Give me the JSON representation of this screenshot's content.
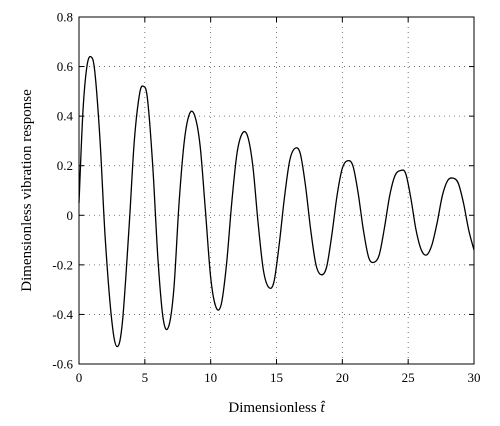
{
  "chart_data": {
    "type": "line",
    "title": "",
    "xlabel_prefix": "Dimensionless ",
    "xlabel_symbol": "t̂",
    "ylabel": "Dimensionless vibration response",
    "xlim": [
      0,
      30
    ],
    "ylim": [
      -0.6,
      0.8
    ],
    "x_ticks": [
      0,
      5,
      10,
      15,
      20,
      25,
      30
    ],
    "y_ticks": [
      -0.6,
      -0.4,
      -0.2,
      0,
      0.2,
      0.4,
      0.6,
      0.8
    ],
    "x_tick_labels": [
      "0",
      "5",
      "10",
      "15",
      "20",
      "25",
      "30"
    ],
    "y_tick_labels": [
      "-0.6",
      "-0.4",
      "-0.2",
      "0",
      "0.2",
      "0.4",
      "0.6",
      "0.8"
    ],
    "grid": true,
    "series": [
      {
        "x": [
          0,
          0.3,
          0.6,
          0.9,
          1.2,
          1.6,
          2.0,
          2.5,
          2.9,
          3.3,
          3.8,
          4.2,
          4.6,
          4.9,
          5.2,
          5.6,
          6.0,
          6.4,
          6.8,
          7.2,
          7.6,
          8.0,
          8.4,
          8.8,
          9.2,
          9.6,
          10.0,
          10.4,
          10.8,
          11.2,
          11.6,
          12.0,
          12.4,
          12.8,
          13.2,
          13.6,
          14.0,
          14.4,
          14.8,
          15.2,
          15.6,
          16.0,
          16.4,
          16.8,
          17.2,
          17.6,
          18.0,
          18.4,
          18.8,
          19.2,
          19.6,
          20.0,
          20.4,
          20.8,
          21.2,
          21.6,
          22.0,
          22.4,
          22.8,
          23.2,
          23.6,
          24.0,
          24.4,
          24.8,
          25.2,
          25.6,
          26.0,
          26.4,
          26.8,
          27.2,
          27.6,
          28.0,
          28.4,
          28.8,
          29.2,
          29.6,
          30.0
        ],
        "y": [
          0.05,
          0.42,
          0.6,
          0.64,
          0.58,
          0.3,
          -0.1,
          -0.43,
          -0.53,
          -0.43,
          -0.05,
          0.3,
          0.49,
          0.52,
          0.47,
          0.2,
          -0.18,
          -0.42,
          -0.45,
          -0.3,
          0.05,
          0.3,
          0.41,
          0.4,
          0.28,
          0.02,
          -0.25,
          -0.37,
          -0.36,
          -0.2,
          0.05,
          0.25,
          0.33,
          0.32,
          0.2,
          -0.03,
          -0.22,
          -0.29,
          -0.27,
          -0.12,
          0.07,
          0.22,
          0.27,
          0.25,
          0.12,
          -0.06,
          -0.2,
          -0.24,
          -0.21,
          -0.08,
          0.08,
          0.19,
          0.22,
          0.2,
          0.09,
          -0.06,
          -0.17,
          -0.19,
          -0.16,
          -0.05,
          0.08,
          0.16,
          0.18,
          0.17,
          0.07,
          -0.06,
          -0.14,
          -0.16,
          -0.12,
          -0.03,
          0.08,
          0.14,
          0.15,
          0.13,
          0.05,
          -0.06,
          -0.14
        ]
      }
    ]
  }
}
